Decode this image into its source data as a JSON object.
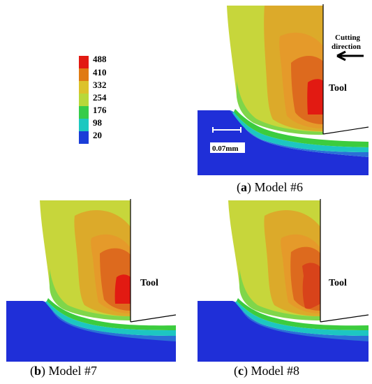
{
  "legend": {
    "values": [
      "488",
      "410",
      "332",
      "254",
      "176",
      "98",
      "20"
    ],
    "colors": [
      "#e21a12",
      "#e06a10",
      "#c8b321",
      "#c8d62a",
      "#2fc93c",
      "#1cc8bf",
      "#1a3ed8"
    ]
  },
  "palette": {
    "deep_blue": "#1f2fd8",
    "mid_blue": "#2a70d6",
    "cyan": "#1dc6c2",
    "green": "#3ccc3e",
    "light_green": "#7fd64a",
    "yellow_green": "#c7d63b",
    "olive": "#cfc23a",
    "orange": "#e59a2a",
    "dark_orange": "#dd6a1e",
    "red": "#e21a12"
  },
  "panels": {
    "a": {
      "caption_letter": "a",
      "caption_text": "Model #6",
      "tool_label": "Tool",
      "direction_label_1": "Cutting",
      "direction_label_2": "direction",
      "scale_label": "0.07mm"
    },
    "b": {
      "caption_letter": "b",
      "caption_text": "Model #7",
      "tool_label": "Tool"
    },
    "c": {
      "caption_letter": "c",
      "caption_text": "Model #8",
      "tool_label": "Tool"
    }
  }
}
